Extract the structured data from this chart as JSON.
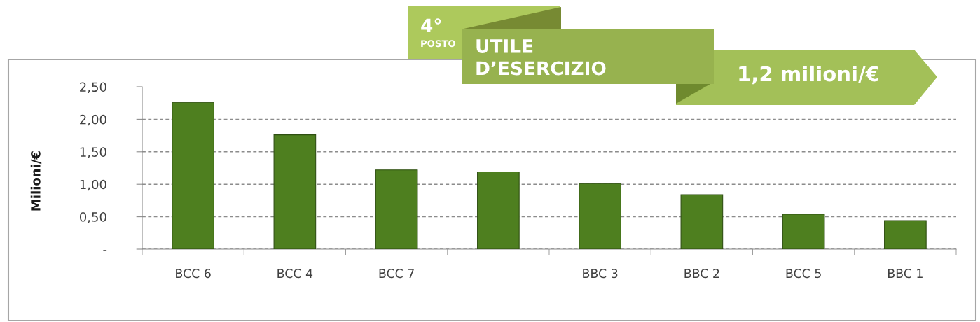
{
  "chart_data": {
    "type": "bar",
    "categories": [
      "BCC 6",
      "BCC 4",
      "BCC 7",
      null,
      "BBC 3",
      "BBC 2",
      "BCC 5",
      "BBC 1"
    ],
    "values": [
      2.26,
      1.76,
      1.22,
      1.19,
      1.01,
      0.84,
      0.54,
      0.44
    ],
    "color": "#4e7f1f",
    "ylabel": "Milioni/€",
    "ylim": [
      0,
      2.5
    ],
    "yticks": [
      {
        "value": 0,
        "label": "-"
      },
      {
        "value": 0.5,
        "label": "0,50"
      },
      {
        "value": 1,
        "label": "1,00"
      },
      {
        "value": 1.5,
        "label": "1,50"
      },
      {
        "value": 2,
        "label": "2,00"
      },
      {
        "value": 2.5,
        "label": "2,50"
      }
    ],
    "grid": "y",
    "annotations": [
      "4°",
      "POSTO",
      "UTILE\nD’ESERCIZIO",
      "1,2 milioni/€"
    ]
  }
}
